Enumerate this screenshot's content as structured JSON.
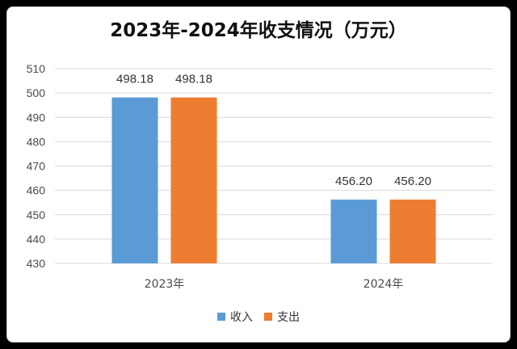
{
  "chart_data": {
    "type": "bar",
    "title": "2023年-2024年收支情况（万元）",
    "categories": [
      "2023年",
      "2024年"
    ],
    "series": [
      {
        "name": "收入",
        "values": [
          498.18,
          456.2
        ],
        "labels": [
          "498.18",
          "456.20"
        ],
        "color": "#5B9BD5"
      },
      {
        "name": "支出",
        "values": [
          498.18,
          456.2
        ],
        "labels": [
          "498.18",
          "456.20"
        ],
        "color": "#ED7D31"
      }
    ],
    "ylim": [
      430,
      510
    ],
    "yticks": [
      430,
      440,
      450,
      460,
      470,
      480,
      490,
      500,
      510
    ],
    "grid": true,
    "legend": "bottom"
  }
}
